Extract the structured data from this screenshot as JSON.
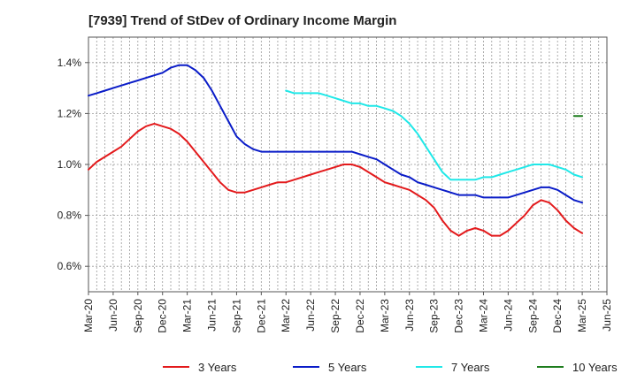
{
  "chart_data": {
    "type": "line",
    "title": "[7939]  Trend of StDev of Ordinary Income Margin",
    "xlabel": "",
    "ylabel": "",
    "y_unit": "%",
    "ylim": [
      0.5,
      1.5
    ],
    "y_ticks": [
      0.6,
      0.8,
      1.0,
      1.2,
      1.4
    ],
    "y_tick_labels": [
      "0.6%",
      "0.8%",
      "1.0%",
      "1.2%",
      "1.4%"
    ],
    "x_range": [
      "2020-03",
      "2025-06"
    ],
    "x_ticks": [
      "2020-03",
      "2020-06",
      "2020-09",
      "2020-12",
      "2021-03",
      "2021-06",
      "2021-09",
      "2021-12",
      "2022-03",
      "2022-06",
      "2022-09",
      "2022-12",
      "2023-03",
      "2023-06",
      "2023-09",
      "2023-12",
      "2024-03",
      "2024-06",
      "2024-09",
      "2024-12",
      "2025-03",
      "2025-06"
    ],
    "x_tick_labels": [
      "Mar-20",
      "Jun-20",
      "Sep-20",
      "Dec-20",
      "Mar-21",
      "Jun-21",
      "Sep-21",
      "Dec-21",
      "Mar-22",
      "Jun-22",
      "Sep-22",
      "Dec-22",
      "Mar-23",
      "Jun-23",
      "Sep-23",
      "Dec-23",
      "Mar-24",
      "Jun-24",
      "Sep-24",
      "Dec-24",
      "Mar-25",
      "Jun-25"
    ],
    "grid": true,
    "legend_position": "bottom",
    "series": [
      {
        "name": "3 Years",
        "color": "#e31a1c",
        "x": [
          "2020-03",
          "2020-04",
          "2020-05",
          "2020-06",
          "2020-07",
          "2020-08",
          "2020-09",
          "2020-10",
          "2020-11",
          "2020-12",
          "2021-01",
          "2021-02",
          "2021-03",
          "2021-04",
          "2021-05",
          "2021-06",
          "2021-07",
          "2021-08",
          "2021-09",
          "2021-10",
          "2021-11",
          "2021-12",
          "2022-01",
          "2022-02",
          "2022-03",
          "2022-04",
          "2022-05",
          "2022-06",
          "2022-07",
          "2022-08",
          "2022-09",
          "2022-10",
          "2022-11",
          "2022-12",
          "2023-01",
          "2023-02",
          "2023-03",
          "2023-04",
          "2023-05",
          "2023-06",
          "2023-07",
          "2023-08",
          "2023-09",
          "2023-10",
          "2023-11",
          "2023-12",
          "2024-01",
          "2024-02",
          "2024-03",
          "2024-04",
          "2024-05",
          "2024-06",
          "2024-07",
          "2024-08",
          "2024-09",
          "2024-10",
          "2024-11",
          "2024-12",
          "2025-01",
          "2025-02",
          "2025-03"
        ],
        "values": [
          0.98,
          1.01,
          1.03,
          1.05,
          1.07,
          1.1,
          1.13,
          1.15,
          1.16,
          1.15,
          1.14,
          1.12,
          1.09,
          1.05,
          1.01,
          0.97,
          0.93,
          0.9,
          0.89,
          0.89,
          0.9,
          0.91,
          0.92,
          0.93,
          0.93,
          0.94,
          0.95,
          0.96,
          0.97,
          0.98,
          0.99,
          1.0,
          1.0,
          0.99,
          0.97,
          0.95,
          0.93,
          0.92,
          0.91,
          0.9,
          0.88,
          0.86,
          0.83,
          0.78,
          0.74,
          0.72,
          0.74,
          0.75,
          0.74,
          0.72,
          0.72,
          0.74,
          0.77,
          0.8,
          0.84,
          0.86,
          0.85,
          0.82,
          0.78,
          0.75,
          0.73
        ]
      },
      {
        "name": "5 Years",
        "color": "#0a1cc8",
        "x": [
          "2020-03",
          "2020-04",
          "2020-05",
          "2020-06",
          "2020-07",
          "2020-08",
          "2020-09",
          "2020-10",
          "2020-11",
          "2020-12",
          "2021-01",
          "2021-02",
          "2021-03",
          "2021-04",
          "2021-05",
          "2021-06",
          "2021-07",
          "2021-08",
          "2021-09",
          "2021-10",
          "2021-11",
          "2021-12",
          "2022-01",
          "2022-02",
          "2022-03",
          "2022-04",
          "2022-05",
          "2022-06",
          "2022-07",
          "2022-08",
          "2022-09",
          "2022-10",
          "2022-11",
          "2022-12",
          "2023-01",
          "2023-02",
          "2023-03",
          "2023-04",
          "2023-05",
          "2023-06",
          "2023-07",
          "2023-08",
          "2023-09",
          "2023-10",
          "2023-11",
          "2023-12",
          "2024-01",
          "2024-02",
          "2024-03",
          "2024-04",
          "2024-05",
          "2024-06",
          "2024-07",
          "2024-08",
          "2024-09",
          "2024-10",
          "2024-11",
          "2024-12",
          "2025-01",
          "2025-02",
          "2025-03"
        ],
        "values": [
          1.27,
          1.28,
          1.29,
          1.3,
          1.31,
          1.32,
          1.33,
          1.34,
          1.35,
          1.36,
          1.38,
          1.39,
          1.39,
          1.37,
          1.34,
          1.29,
          1.23,
          1.17,
          1.11,
          1.08,
          1.06,
          1.05,
          1.05,
          1.05,
          1.05,
          1.05,
          1.05,
          1.05,
          1.05,
          1.05,
          1.05,
          1.05,
          1.05,
          1.04,
          1.03,
          1.02,
          1.0,
          0.98,
          0.96,
          0.95,
          0.93,
          0.92,
          0.91,
          0.9,
          0.89,
          0.88,
          0.88,
          0.88,
          0.87,
          0.87,
          0.87,
          0.87,
          0.88,
          0.89,
          0.9,
          0.91,
          0.91,
          0.9,
          0.88,
          0.86,
          0.85
        ]
      },
      {
        "name": "7 Years",
        "color": "#20e8e8",
        "x": [
          "2022-03",
          "2022-04",
          "2022-05",
          "2022-06",
          "2022-07",
          "2022-08",
          "2022-09",
          "2022-10",
          "2022-11",
          "2022-12",
          "2023-01",
          "2023-02",
          "2023-03",
          "2023-04",
          "2023-05",
          "2023-06",
          "2023-07",
          "2023-08",
          "2023-09",
          "2023-10",
          "2023-11",
          "2023-12",
          "2024-01",
          "2024-02",
          "2024-03",
          "2024-04",
          "2024-05",
          "2024-06",
          "2024-07",
          "2024-08",
          "2024-09",
          "2024-10",
          "2024-11",
          "2024-12",
          "2025-01",
          "2025-02",
          "2025-03"
        ],
        "values": [
          1.29,
          1.28,
          1.28,
          1.28,
          1.28,
          1.27,
          1.26,
          1.25,
          1.24,
          1.24,
          1.23,
          1.23,
          1.22,
          1.21,
          1.19,
          1.16,
          1.12,
          1.07,
          1.02,
          0.97,
          0.94,
          0.94,
          0.94,
          0.94,
          0.95,
          0.95,
          0.96,
          0.97,
          0.98,
          0.99,
          1.0,
          1.0,
          1.0,
          0.99,
          0.98,
          0.96,
          0.95
        ]
      },
      {
        "name": "10 Years",
        "color": "#1e7d1e",
        "x": [
          "2025-02",
          "2025-03"
        ],
        "values": [
          1.19,
          1.19
        ]
      }
    ]
  }
}
